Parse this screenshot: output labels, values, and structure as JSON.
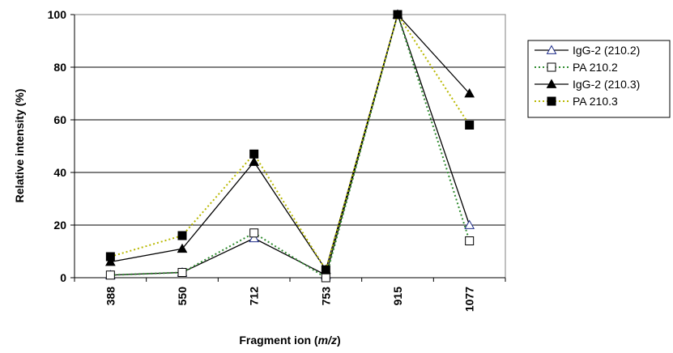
{
  "chart_data": {
    "type": "line",
    "title": "",
    "xlabel": "Fragment ion (",
    "xlabel_italic": "m/z",
    "xlabel_end": ")",
    "ylabel": "Relative intensity (%)",
    "categories": [
      "388",
      "550",
      "712",
      "753",
      "915",
      "1077"
    ],
    "ylim": [
      0,
      100
    ],
    "yticks": [
      "0",
      "20",
      "40",
      "60",
      "80",
      "100"
    ],
    "grid": "horizontal",
    "legend_position": "right",
    "series": [
      {
        "name": "IgG-2 (210.2)",
        "values": [
          1,
          2,
          15,
          1,
          100,
          20
        ],
        "marker": "triangle-open",
        "line": "solid",
        "color": "#000000",
        "marker_color": "#1f2d8a"
      },
      {
        "name": "PA 210.2",
        "values": [
          1,
          2,
          17,
          0,
          100,
          14
        ],
        "marker": "square-open",
        "line": "dotted",
        "color": "#2e8b2e",
        "marker_color": "#000000"
      },
      {
        "name": "IgG-2 (210.3)",
        "values": [
          6,
          11,
          44,
          3,
          100,
          70
        ],
        "marker": "triangle-filled",
        "line": "solid",
        "color": "#000000",
        "marker_color": "#000000"
      },
      {
        "name": "PA 210.3",
        "values": [
          8,
          16,
          47,
          3,
          100,
          58
        ],
        "marker": "square-filled",
        "line": "dotted",
        "color": "#b8b800",
        "marker_color": "#000000"
      }
    ]
  }
}
